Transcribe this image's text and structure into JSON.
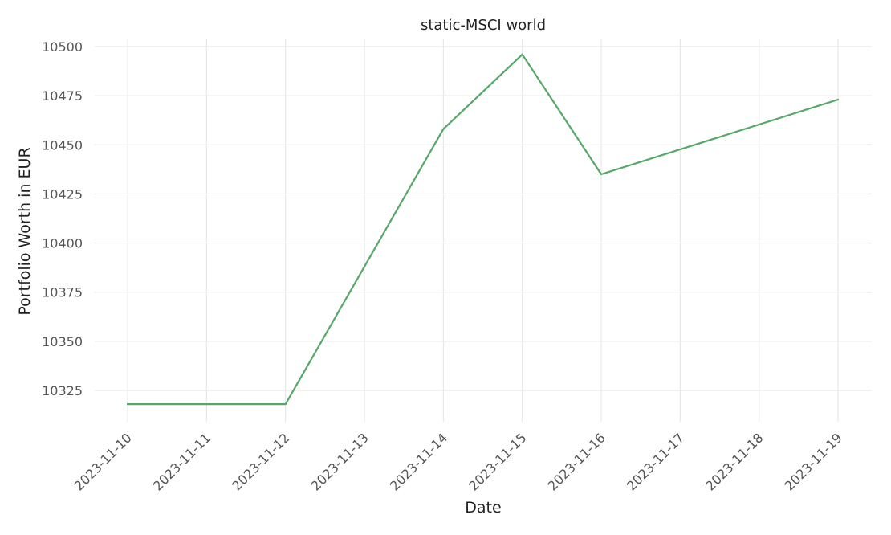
{
  "chart_data": {
    "type": "line",
    "title": "static-MSCI world",
    "xlabel": "Date",
    "ylabel": "Portfolio Worth in EUR",
    "categories": [
      "2023-11-10",
      "2023-11-11",
      "2023-11-12",
      "2023-11-13",
      "2023-11-14",
      "2023-11-15",
      "2023-11-16",
      "2023-11-17",
      "2023-11-18",
      "2023-11-19"
    ],
    "series": [
      {
        "x": [
          "2023-11-10",
          "2023-11-12",
          "2023-11-14",
          "2023-11-15",
          "2023-11-16",
          "2023-11-19"
        ],
        "values": [
          10318,
          10318,
          10458,
          10496,
          10435,
          10473
        ],
        "color": "#55a868"
      }
    ],
    "yticks": [
      10325,
      10350,
      10375,
      10400,
      10425,
      10450,
      10475,
      10500
    ],
    "ylim": [
      10310,
      10504
    ],
    "grid": true,
    "legend": "none"
  }
}
